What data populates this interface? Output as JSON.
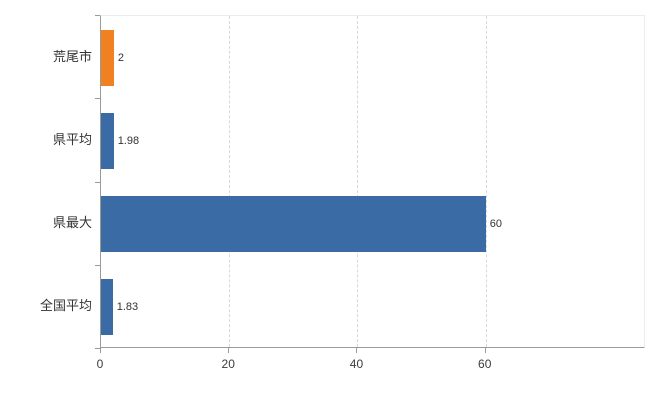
{
  "chart_data": {
    "type": "bar",
    "orientation": "horizontal",
    "title": "",
    "xlabel": "",
    "ylabel": "",
    "categories": [
      "荒尾市",
      "県平均",
      "県最大",
      "全国平均"
    ],
    "values": [
      2,
      1.98,
      60,
      1.83
    ],
    "value_labels": [
      "2",
      "1.98",
      "60",
      "1.83"
    ],
    "bar_colors": [
      "#ef8122",
      "#3a6ba5",
      "#3a6ba5",
      "#3a6ba5"
    ],
    "x_axis": {
      "ticks": [
        0,
        20,
        40,
        60
      ],
      "tick_labels": [
        "0",
        "20",
        "40",
        "60"
      ],
      "min": 0,
      "max": 85
    },
    "grid": "vertical-dashed",
    "legend": "none"
  },
  "colors": {
    "orange_bar": "#ef8122",
    "blue_bar": "#3a6ba5",
    "axis_line": "#9a9a9a",
    "grid_line": "#d8d8d8",
    "text": "#333333",
    "background": "#ffffff"
  }
}
